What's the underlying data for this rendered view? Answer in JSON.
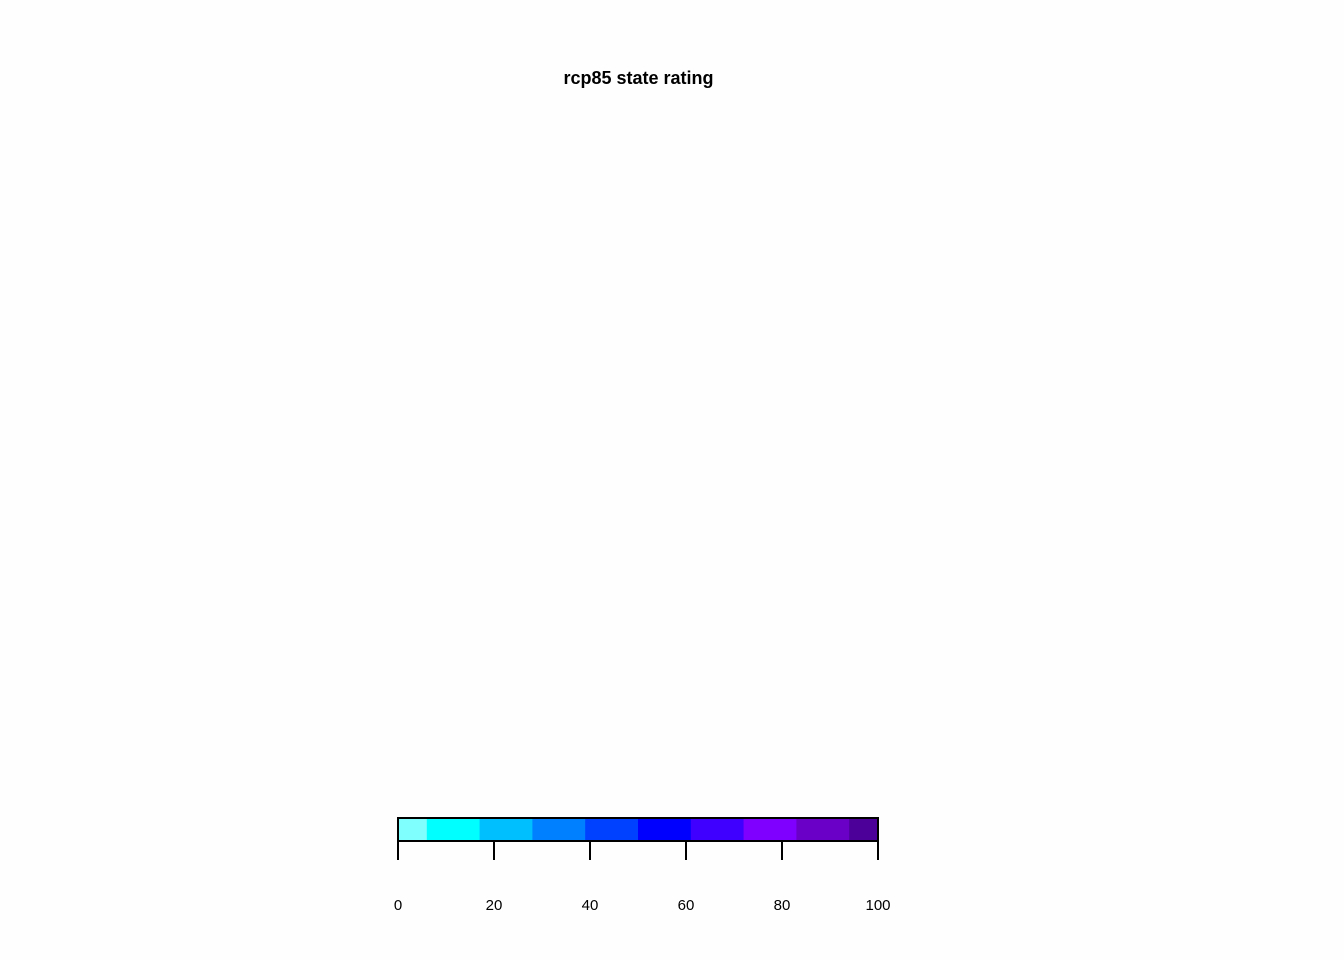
{
  "chart_data": {
    "type": "heatmap",
    "title": "rcp85 state rating",
    "legend": {
      "placement": "bottom",
      "range": [
        0,
        100
      ],
      "ticks": [
        0,
        20,
        40,
        60,
        80,
        100
      ],
      "tick_labels": [
        "0",
        "20",
        "40",
        "60",
        "80",
        "100"
      ],
      "bins": [
        {
          "from": 0,
          "to": 6,
          "color": "#80ffff"
        },
        {
          "from": 6,
          "to": 17,
          "color": "#00ffff"
        },
        {
          "from": 17,
          "to": 28,
          "color": "#00bfff"
        },
        {
          "from": 28,
          "to": 39,
          "color": "#0080ff"
        },
        {
          "from": 39,
          "to": 50,
          "color": "#0040ff"
        },
        {
          "from": 50,
          "to": 61,
          "color": "#0000ff"
        },
        {
          "from": 61,
          "to": 72,
          "color": "#4000ff"
        },
        {
          "from": 72,
          "to": 83,
          "color": "#8000ff"
        },
        {
          "from": 83,
          "to": 94,
          "color": "#6a00c8"
        },
        {
          "from": 94,
          "to": 100,
          "color": "#4c0099"
        }
      ]
    }
  }
}
